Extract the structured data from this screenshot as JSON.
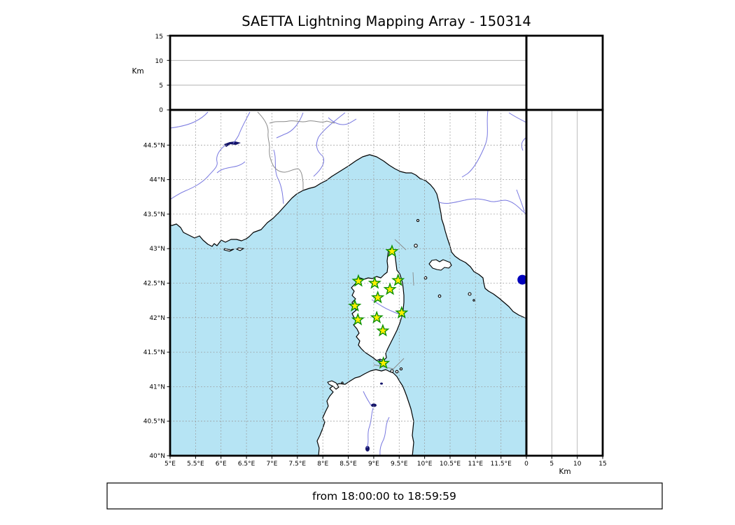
{
  "title": "SAETTA Lightning Mapping Array - 150314",
  "footer": {
    "text": "from 18:00:00 to 18:59:59"
  },
  "axes": {
    "alt_left": {
      "label": "Km",
      "ticks": [
        "0",
        "5",
        "10",
        "15"
      ]
    },
    "alt_bottom": {
      "label": "Km",
      "ticks": [
        "0",
        "5",
        "10",
        "15"
      ]
    },
    "lat_ticks": [
      "44.5°N",
      "44°N",
      "43.5°N",
      "43°N",
      "42.5°N",
      "42°N",
      "41.5°N",
      "41°N",
      "40.5°N",
      "40°N"
    ],
    "lon_ticks": [
      "5°E",
      "5.5°E",
      "6°E",
      "6.5°E",
      "7°E",
      "7.5°E",
      "8°E",
      "8.5°E",
      "9°E",
      "9.5°E",
      "10°E",
      "10.5°E",
      "11°E",
      "11.5°E"
    ]
  },
  "chart_data": {
    "type": "scatter",
    "title": "SAETTA Lightning Mapping Array - 150314",
    "time_window": "from 18:00:00 to 18:59:59",
    "map_bounds": {
      "lon_min": 5,
      "lon_max": 12,
      "lat_min": 40,
      "lat_max": 45
    },
    "grid_step_deg": 0.5,
    "altitude_axis_km": {
      "min": 0,
      "max": 15,
      "ticks": [
        0,
        5,
        10,
        15
      ]
    },
    "stations_lon_lat": [
      [
        9.36,
        42.96
      ],
      [
        8.7,
        42.53
      ],
      [
        9.02,
        42.5
      ],
      [
        9.48,
        42.54
      ],
      [
        9.32,
        42.41
      ],
      [
        9.08,
        42.29
      ],
      [
        8.63,
        42.17
      ],
      [
        9.55,
        42.07
      ],
      [
        9.06,
        42.0
      ],
      [
        8.69,
        41.97
      ],
      [
        9.18,
        41.81
      ],
      [
        9.19,
        41.34
      ]
    ],
    "sources": [
      {
        "lat": 42.55,
        "alt_km": -0.8
      }
    ],
    "colors": {
      "sea": "#b6e4f4",
      "land": "#ffffff",
      "coast": "#000000",
      "river": "#7878e0",
      "border": "#8a8a8a",
      "grid": "#999999",
      "lake": "#14146a",
      "station_fill": "#ffee00",
      "station_edge": "#089000",
      "source": "#0000bb"
    }
  }
}
